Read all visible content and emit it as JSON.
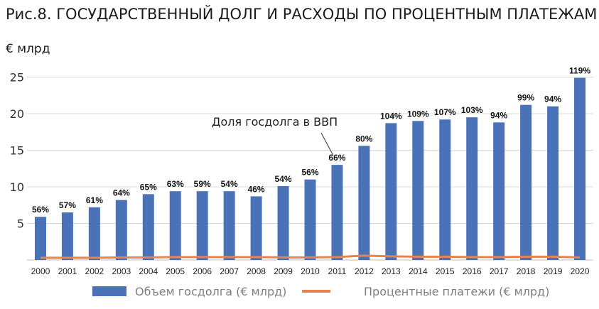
{
  "title": "Рис.8. ГОСУДАРСТВЕННЫЙ ДОЛГ И РАСХОДЫ ПО ПРОЦЕНТНЫМ ПЛАТЕЖАМ",
  "unit_label": "€ млрд",
  "annotation": "Доля госдолга в ВВП",
  "colors": {
    "bars": "#4a72b8",
    "line": "#e8834d",
    "grid": "#d9d9d9"
  },
  "chart_data": {
    "type": "bar",
    "title": "Рис.8. ГОСУДАРСТВЕННЫЙ ДОЛГ И РАСХОДЫ ПО ПРОЦЕНТНЫМ ПЛАТЕЖАМ",
    "xlabel": "",
    "ylabel": "€ млрд",
    "ylim": [
      0,
      27
    ],
    "yticks": [
      5,
      10,
      15,
      20,
      25
    ],
    "grid": true,
    "legend_position": "bottom",
    "categories": [
      "2000",
      "2001",
      "2002",
      "2003",
      "2004",
      "2005",
      "2006",
      "2007",
      "2008",
      "2009",
      "2010",
      "2011",
      "2012",
      "2013",
      "2014",
      "2015",
      "2016",
      "2017",
      "2018",
      "2019",
      "2020"
    ],
    "series": [
      {
        "name": "Объем госдолга (€ млрд)",
        "type": "bar",
        "values": [
          5.9,
          6.5,
          7.2,
          8.2,
          9.0,
          9.4,
          9.4,
          9.4,
          8.7,
          10.1,
          11.0,
          13.0,
          15.6,
          18.7,
          19.0,
          19.2,
          19.5,
          18.8,
          21.2,
          21.0,
          24.9
        ],
        "data_labels": [
          "56%",
          "57%",
          "61%",
          "64%",
          "65%",
          "63%",
          "59%",
          "54%",
          "46%",
          "54%",
          "56%",
          "66%",
          "80%",
          "104%",
          "109%",
          "107%",
          "103%",
          "94%",
          "99%",
          "94%",
          "119%"
        ]
      },
      {
        "name": "Процентные платежи (€ млрд)",
        "type": "line",
        "values": [
          0.3,
          0.3,
          0.3,
          0.35,
          0.35,
          0.4,
          0.4,
          0.4,
          0.4,
          0.35,
          0.35,
          0.4,
          0.6,
          0.5,
          0.45,
          0.45,
          0.4,
          0.4,
          0.45,
          0.45,
          0.35
        ]
      }
    ]
  }
}
